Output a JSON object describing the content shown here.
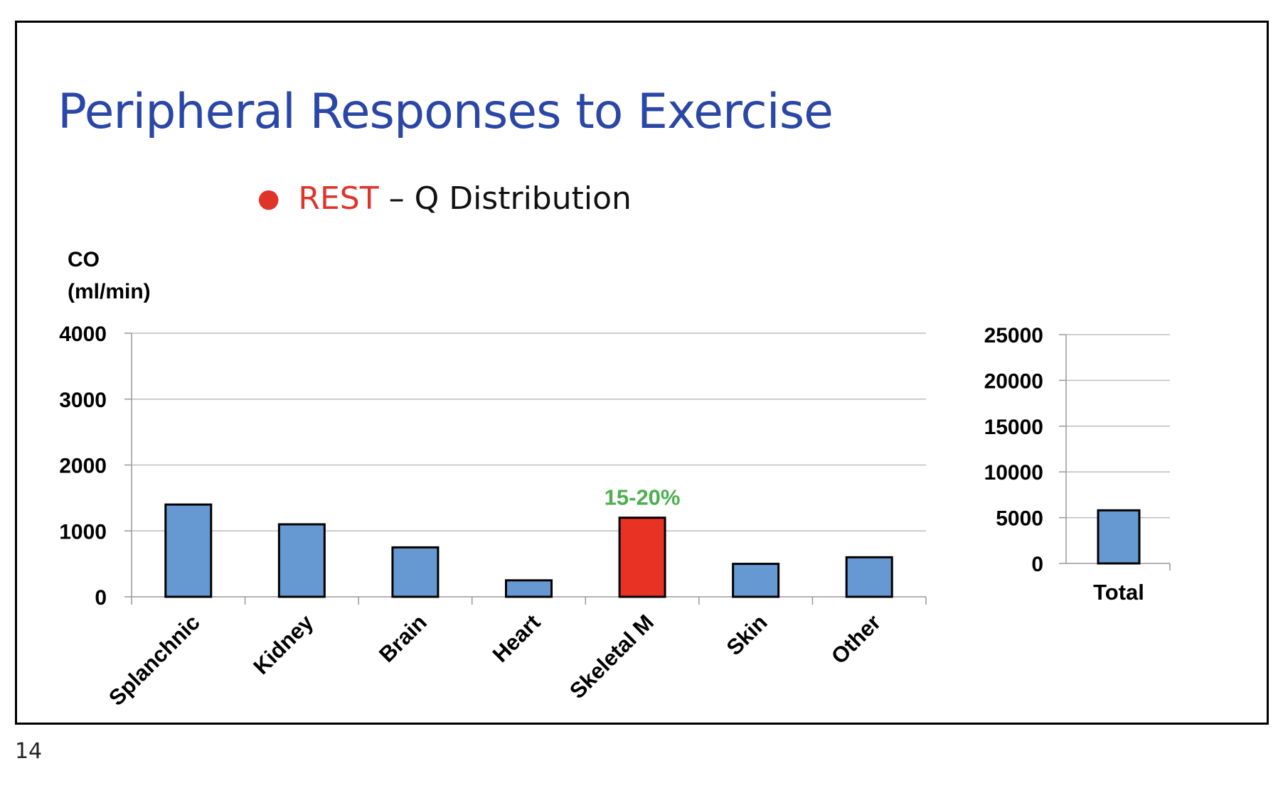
{
  "slide": {
    "title": "Peripheral Responses to Exercise",
    "subtitle_highlight": "REST",
    "subtitle_rest": " – Q Distribution",
    "page_number": "14"
  },
  "colors": {
    "title": "#2a46a6",
    "highlight": "#e0332a",
    "bar_default": "#6699d2",
    "bar_highlight": "#e83224",
    "annotation": "#4caf50"
  },
  "chart_data": [
    {
      "type": "bar",
      "ylabel_line1": "CO",
      "ylabel_line2": "(ml/min)",
      "categories": [
        "Splanchnic",
        "Kidney",
        "Brain",
        "Heart",
        "Skeletal M",
        "Skin",
        "Other"
      ],
      "values": [
        1400,
        1100,
        750,
        250,
        1200,
        500,
        600
      ],
      "highlight_category": "Skeletal M",
      "annotation": "15-20%",
      "ylim": [
        0,
        4000
      ],
      "yticks": [
        "0",
        "1000",
        "2000",
        "3000",
        "4000"
      ],
      "grid": true
    },
    {
      "type": "bar",
      "categories": [
        "Total"
      ],
      "values": [
        5800
      ],
      "ylim": [
        0,
        25000
      ],
      "yticks": [
        "0",
        "5000",
        "10000",
        "15000",
        "20000",
        "25000"
      ],
      "grid": true
    }
  ]
}
